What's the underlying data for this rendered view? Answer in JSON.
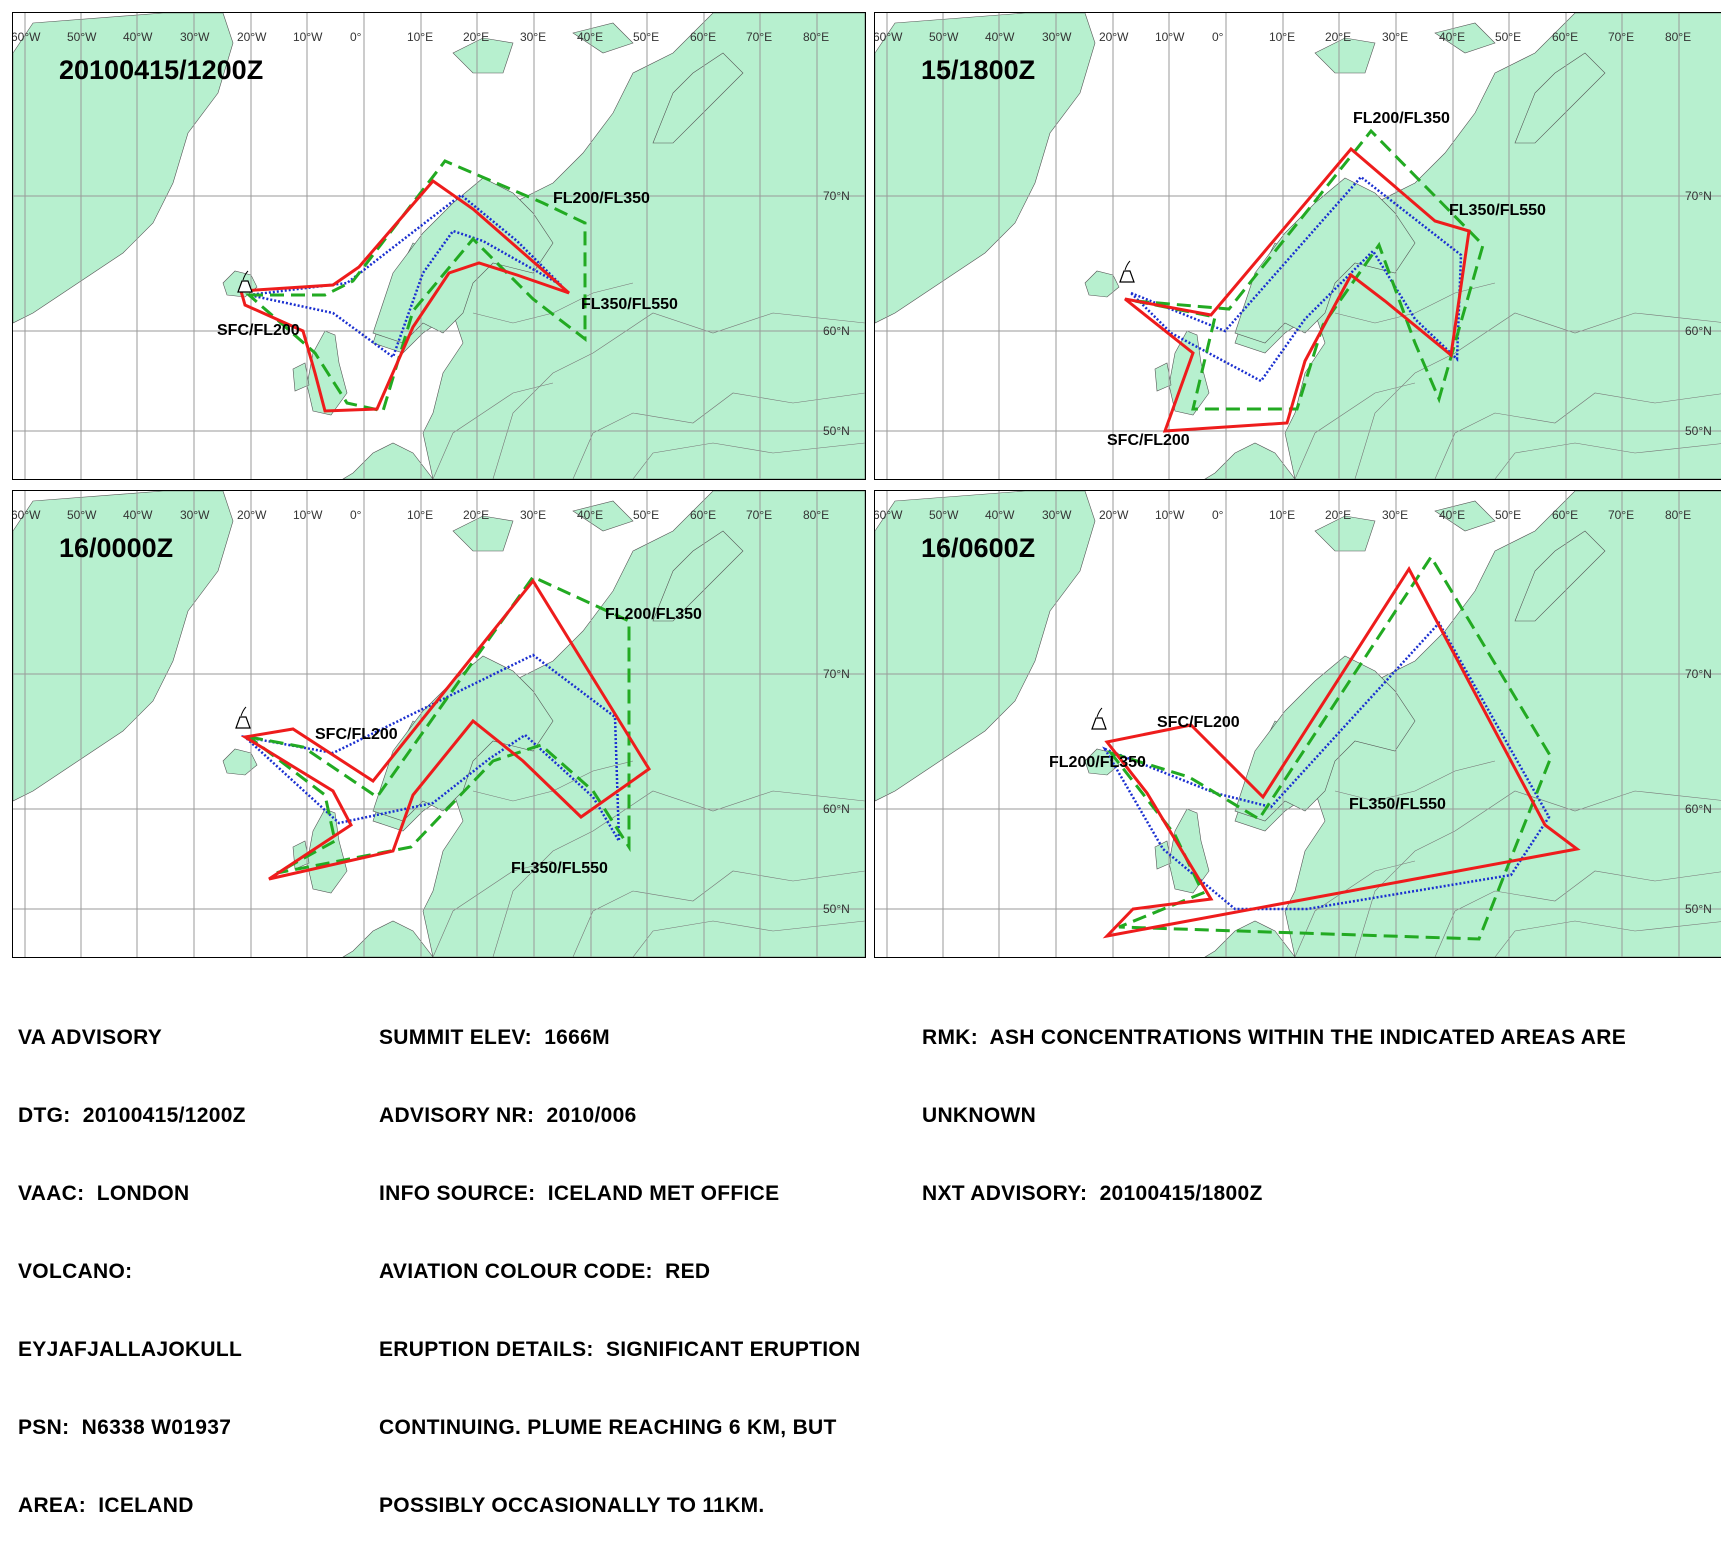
{
  "colors": {
    "land": "#b7f0cf",
    "sea": "#ffffff",
    "grid": "#9a9a9a",
    "sfc_fl200": "#ee1c1c",
    "fl200_fl350": "#22aa22",
    "fl350_fl550": "#1a2fd0"
  },
  "longitude_ticks": [
    "60°W",
    "50°W",
    "40°W",
    "30°W",
    "20°W",
    "10°W",
    "0°",
    "10°E",
    "20°E",
    "30°E",
    "40°E",
    "50°E",
    "60°E",
    "70°E",
    "80°E"
  ],
  "latitude_ticks": [
    "70°N",
    "60°N",
    "50°N"
  ],
  "panels": [
    {
      "title": "20100415/1200Z",
      "labels": [
        "FL200/FL350",
        "FL350/FL550",
        "SFC/FL200"
      ],
      "volcano_icon": "volcano-icon"
    },
    {
      "title": "15/1800Z",
      "labels": [
        "FL200/FL350",
        "FL350/FL550",
        "SFC/FL200"
      ],
      "volcano_icon": "volcano-icon"
    },
    {
      "title": "16/0000Z",
      "labels": [
        "FL200/FL350",
        "SFC/FL200",
        "FL350/FL550"
      ],
      "volcano_icon": "volcano-icon"
    },
    {
      "title": "16/0600Z",
      "labels": [
        "SFC/FL200",
        "FL200/FL350",
        "FL350/FL550"
      ],
      "volcano_icon": "volcano-icon"
    }
  ],
  "advisory": {
    "col1": [
      "VA ADVISORY",
      "DTG:  20100415/1200Z",
      "VAAC:  LONDON",
      "VOLCANO:",
      "EYJAFJALLAJOKULL",
      "PSN:  N6338 W01937",
      "AREA:  ICELAND"
    ],
    "col2": [
      "SUMMIT ELEV:  1666M",
      "ADVISORY NR:  2010/006",
      "INFO SOURCE:  ICELAND MET OFFICE",
      "AVIATION COLOUR CODE:  RED",
      "ERUPTION DETAILS:  SIGNIFICANT ERUPTION",
      "CONTINUING. PLUME REACHING 6 KM, BUT",
      "POSSIBLY OCCASIONALLY TO 11KM."
    ],
    "col3": [
      "RMK:  ASH CONCENTRATIONS WITHIN THE INDICATED AREAS ARE",
      "UNKNOWN",
      "NXT ADVISORY:  20100415/1800Z"
    ]
  }
}
